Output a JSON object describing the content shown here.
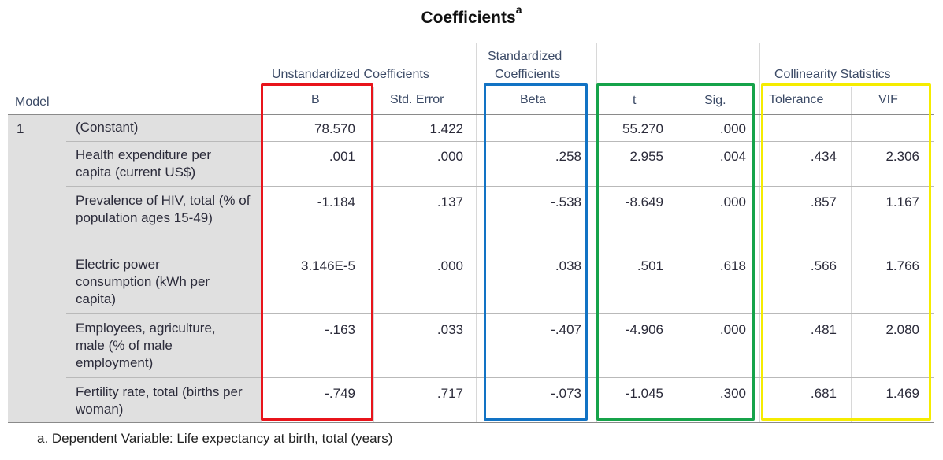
{
  "title": "Coefficients",
  "title_sup": "a",
  "headers": {
    "model": "Model",
    "unstd_group": "Unstandardized Coefficients",
    "std_group_line1": "Standardized",
    "std_group_line2": "Coefficients",
    "collin_group": "Collinearity Statistics",
    "b": "B",
    "std_error": "Std. Error",
    "beta": "Beta",
    "t": "t",
    "sig": "Sig.",
    "tolerance": "Tolerance",
    "vif": "VIF"
  },
  "model_number": "1",
  "rows": [
    {
      "label": "(Constant)",
      "b": "78.570",
      "se": "1.422",
      "beta": "",
      "t": "55.270",
      "sig": ".000",
      "tol": "",
      "vif": ""
    },
    {
      "label": "Health expenditure per capita (current US$)",
      "b": ".001",
      "se": ".000",
      "beta": ".258",
      "t": "2.955",
      "sig": ".004",
      "tol": ".434",
      "vif": "2.306"
    },
    {
      "label": "Prevalence of HIV, total (% of population ages 15-49)",
      "b": "-1.184",
      "se": ".137",
      "beta": "-.538",
      "t": "-8.649",
      "sig": ".000",
      "tol": ".857",
      "vif": "1.167"
    },
    {
      "label": "Electric power consumption (kWh per capita)",
      "b": "3.146E-5",
      "se": ".000",
      "beta": ".038",
      "t": ".501",
      "sig": ".618",
      "tol": ".566",
      "vif": "1.766"
    },
    {
      "label": "Employees, agriculture, male (% of male employment)",
      "b": "-.163",
      "se": ".033",
      "beta": "-.407",
      "t": "-4.906",
      "sig": ".000",
      "tol": ".481",
      "vif": "2.080"
    },
    {
      "label": "Fertility rate, total (births per woman)",
      "b": "-.749",
      "se": ".717",
      "beta": "-.073",
      "t": "-1.045",
      "sig": ".300",
      "tol": ".681",
      "vif": "1.469"
    }
  ],
  "footnote": "a. Dependent Variable: Life expectancy at birth, total (years)",
  "highlight_colors": {
    "b_box": "#e8141b",
    "beta_box": "#1273c4",
    "t_sig_box": "#16a34a",
    "collinearity_box": "#f5ec00"
  }
}
